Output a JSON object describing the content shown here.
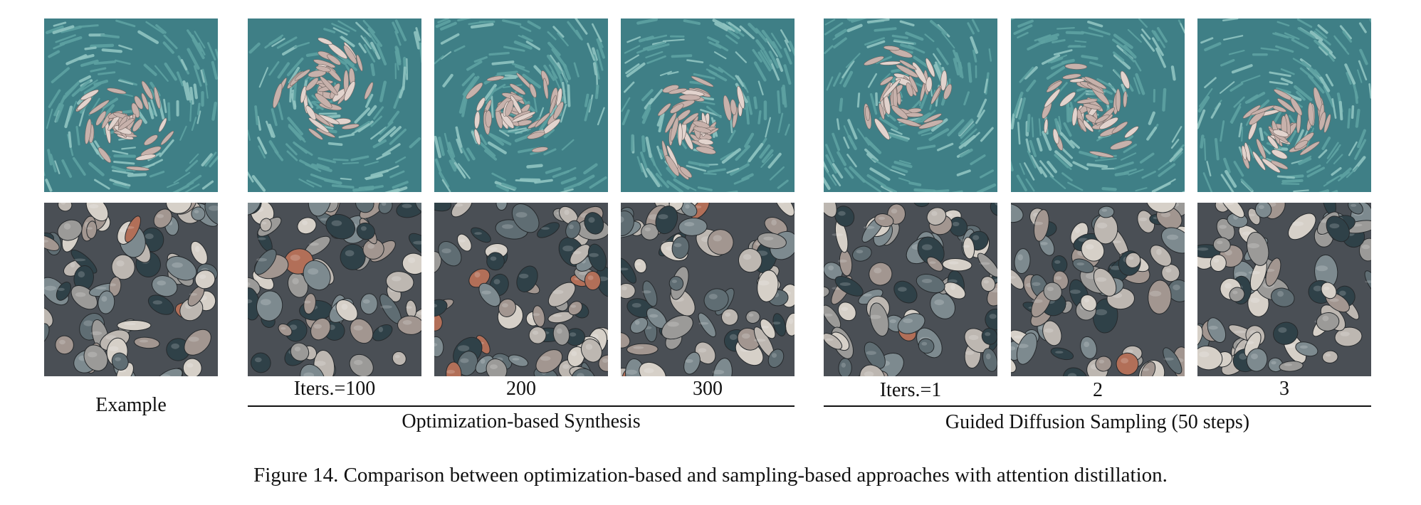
{
  "figure": {
    "caption": "Figure 14. Comparison between optimization-based and sampling-based approaches with attention distillation.",
    "example_label": "Example",
    "optimization_group": {
      "title": "Optimization-based Synthesis",
      "columns": [
        "Iters.=100",
        "200",
        "300"
      ]
    },
    "diffusion_group": {
      "title": "Guided Diffusion Sampling (50 steps)",
      "columns": [
        "Iters.=1",
        "2",
        "3"
      ]
    },
    "rows": [
      "swirl-texture",
      "pebble-texture"
    ],
    "colors": {
      "swirl_background": "#3f7f86",
      "swirl_stroke_teal": "#5ea2a2",
      "swirl_stroke_pink": "#c7b1ab",
      "pebble_background": "#4a4f55",
      "pebble_grey": "#9b9a98",
      "pebble_dark": "#2f4148",
      "pebble_rust": "#b26f58"
    }
  }
}
